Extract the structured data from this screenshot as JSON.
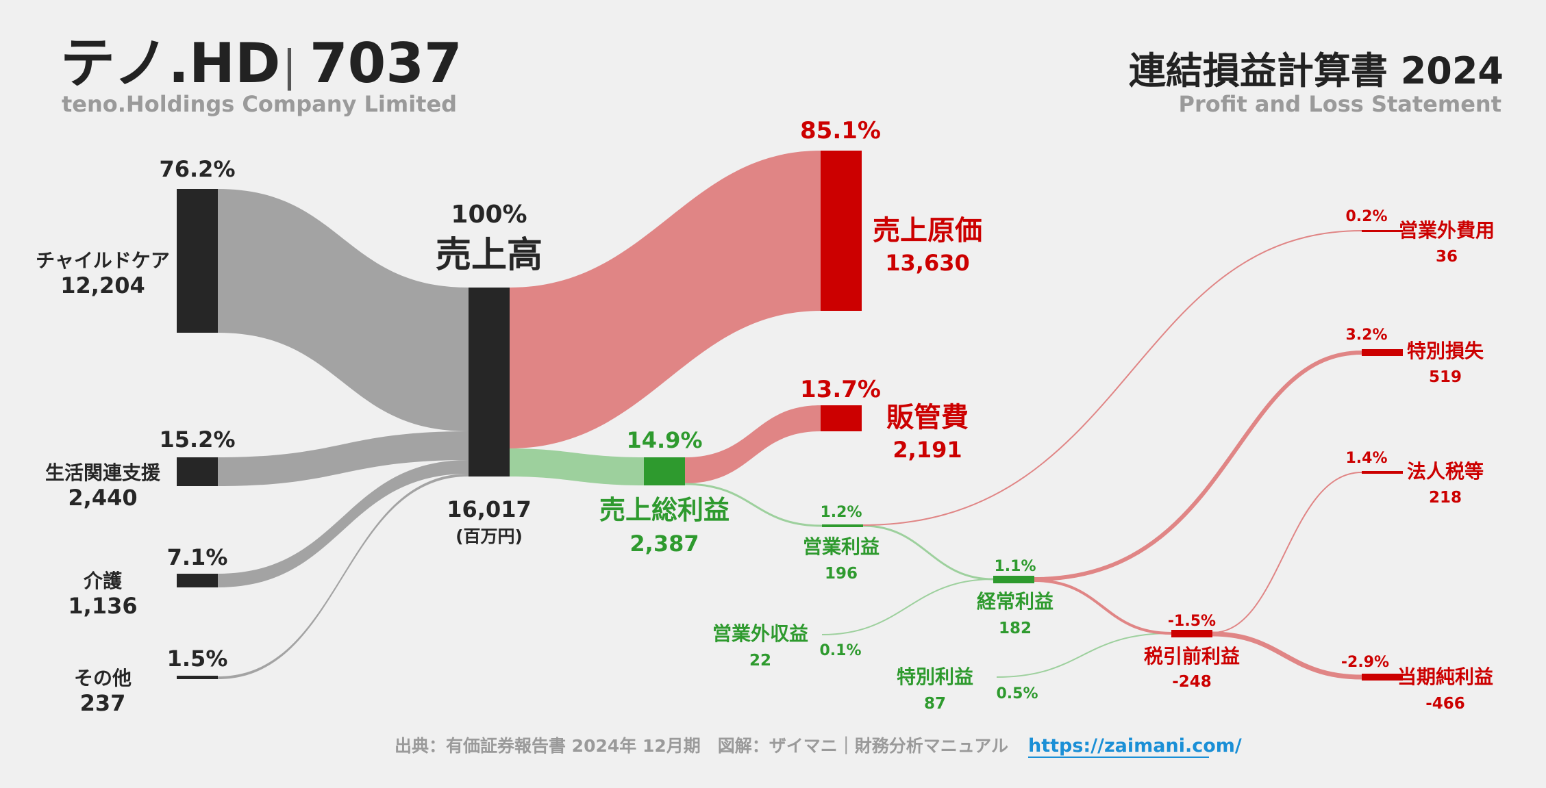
{
  "header": {
    "company": "テノ.HD",
    "separator": "|",
    "code": "7037",
    "company_en": "teno.Holdings Company Limited",
    "statement": "連結損益計算書 2024",
    "statement_en": "Profit and Loss Statement"
  },
  "colors": {
    "dark": "#262626",
    "gray_flow": "#a3a3a3",
    "red": "#cc0000",
    "red_flow": "#e08585",
    "green": "#2e9a2e",
    "green_flow": "#9dd09d"
  },
  "chart_data": {
    "type": "sankey",
    "unit": "(百万円)",
    "nodes": [
      {
        "id": "childcare",
        "label": "チャイルドケア",
        "value": "12,204",
        "pct": "76.2%"
      },
      {
        "id": "life_support",
        "label": "生活関連支援",
        "value": "2,440",
        "pct": "15.2%"
      },
      {
        "id": "care",
        "label": "介護",
        "value": "1,136",
        "pct": "7.1%"
      },
      {
        "id": "other",
        "label": "その他",
        "value": "237",
        "pct": "1.5%"
      },
      {
        "id": "revenue",
        "label": "売上高",
        "value": "16,017",
        "pct": "100%"
      },
      {
        "id": "cogs",
        "label": "売上原価",
        "value": "13,630",
        "pct": "85.1%"
      },
      {
        "id": "sga",
        "label": "販管費",
        "value": "2,191",
        "pct": "13.7%"
      },
      {
        "id": "gross",
        "label": "売上総利益",
        "value": "2,387",
        "pct": "14.9%"
      },
      {
        "id": "op",
        "label": "営業利益",
        "value": "196",
        "pct": "1.2%"
      },
      {
        "id": "nonop_inc",
        "label": "営業外収益",
        "value": "22",
        "pct": "0.1%"
      },
      {
        "id": "nonop_exp",
        "label": "営業外費用",
        "value": "36",
        "pct": "0.2%"
      },
      {
        "id": "ordinary",
        "label": "経常利益",
        "value": "182",
        "pct": "1.1%"
      },
      {
        "id": "sp_gain",
        "label": "特別利益",
        "value": "87",
        "pct": "0.5%"
      },
      {
        "id": "sp_loss",
        "label": "特別損失",
        "value": "519",
        "pct": "3.2%"
      },
      {
        "id": "pretax",
        "label": "税引前利益",
        "value": "-248",
        "pct": "-1.5%"
      },
      {
        "id": "tax",
        "label": "法人税等",
        "value": "218",
        "pct": "1.4%"
      },
      {
        "id": "net",
        "label": "当期純利益",
        "value": "-466",
        "pct": "-2.9%"
      }
    ],
    "links": [
      {
        "from": "childcare",
        "to": "revenue",
        "value": 12204
      },
      {
        "from": "life_support",
        "to": "revenue",
        "value": 2440
      },
      {
        "from": "care",
        "to": "revenue",
        "value": 1136
      },
      {
        "from": "other",
        "to": "revenue",
        "value": 237
      },
      {
        "from": "revenue",
        "to": "cogs",
        "value": 13630
      },
      {
        "from": "revenue",
        "to": "gross",
        "value": 2387
      },
      {
        "from": "gross",
        "to": "sga",
        "value": 2191
      },
      {
        "from": "gross",
        "to": "op",
        "value": 196
      },
      {
        "from": "op",
        "to": "nonop_exp",
        "value": 36
      },
      {
        "from": "op",
        "to": "ordinary",
        "value": 160
      },
      {
        "from": "nonop_inc",
        "to": "ordinary",
        "value": 22
      },
      {
        "from": "ordinary",
        "to": "sp_loss",
        "value": 182
      },
      {
        "from": "ordinary",
        "to": "pretax",
        "value": 0
      },
      {
        "from": "sp_gain",
        "to": "pretax",
        "value": 87
      },
      {
        "from": "pretax",
        "to": "sp_loss",
        "value": 337
      },
      {
        "from": "pretax",
        "to": "tax",
        "value": 218
      },
      {
        "from": "pretax",
        "to": "net",
        "value": 466
      }
    ]
  },
  "footer": {
    "source": "出典：有価証券報告書 2024年 12月期　図解：ザイマニ｜財務分析マニュアル",
    "url": "https://zaimani.com/"
  }
}
